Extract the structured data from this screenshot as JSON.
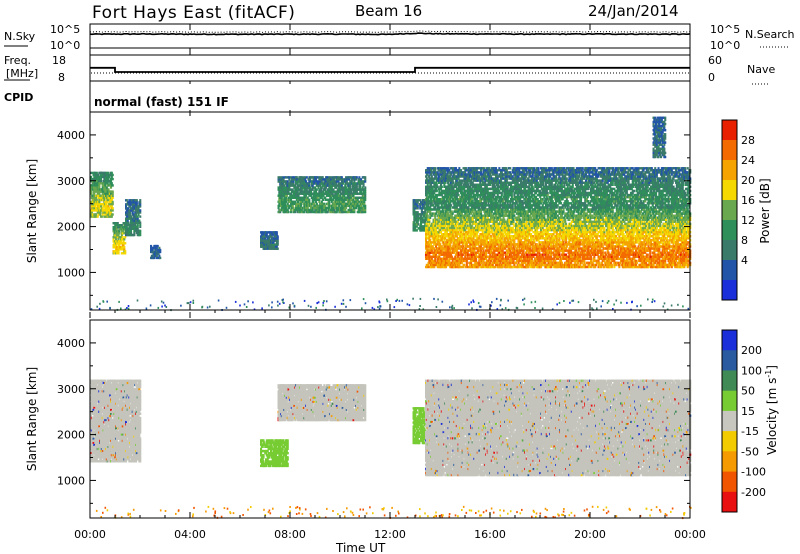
{
  "header": {
    "station": "Fort Hays East (fitACF)",
    "beam": "Beam 16",
    "date": "24/Jan/2014"
  },
  "panels": {
    "nsky": {
      "label": "N.Sky",
      "ticks": [
        "10^5",
        "10^0"
      ],
      "right_label": "N.Search",
      "right_ticks": [
        "10^5",
        "10^0"
      ]
    },
    "freq": {
      "label_line1": "Freq.",
      "label_line2": "[MHz]",
      "ticks": [
        "18",
        "8"
      ],
      "right_label": "Nave",
      "right_ticks": [
        "60",
        "0"
      ]
    },
    "cpid": {
      "label": "CPID",
      "value": "normal (fast) 151 IF"
    }
  },
  "xaxis": {
    "label": "Time UT",
    "ticks": [
      "00:00",
      "04:00",
      "08:00",
      "12:00",
      "16:00",
      "20:00",
      "00:00"
    ]
  },
  "colors": {
    "power": [
      "#1a2fd9",
      "#2255a8",
      "#3a7a6a",
      "#2f8f5a",
      "#6aa84f",
      "#f5d800",
      "#f4a300",
      "#f26a00",
      "#e82000"
    ],
    "velocity": [
      "#1a2fd9",
      "#2a5aa0",
      "#3f8a55",
      "#77cc33",
      "#c7c7c0",
      "#f2cc00",
      "#f59a00",
      "#f25500",
      "#e81010"
    ],
    "ground_scatter": "#c4c4bc"
  },
  "chart_data": [
    {
      "type": "line",
      "title": "N.Sky / N.Search",
      "x_range_hours": [
        0,
        24
      ],
      "series": [
        {
          "name": "N.Sky",
          "x": [
            0,
            2,
            4,
            6,
            8,
            10,
            12,
            13,
            14,
            16,
            18,
            20,
            22,
            24
          ],
          "values": [
            3000,
            3500,
            3000,
            2800,
            3000,
            3200,
            2500,
            6000,
            4000,
            3500,
            3000,
            3500,
            3200,
            3000
          ]
        }
      ]
    },
    {
      "type": "line",
      "title": "Freq. [MHz] / Nave",
      "x_range_hours": [
        0,
        24
      ],
      "ylim": [
        8,
        18
      ],
      "series": [
        {
          "name": "Freq.",
          "x": [
            0,
            1,
            1,
            13,
            13,
            24
          ],
          "values": [
            12.6,
            12.6,
            10.5,
            10.5,
            12.6,
            12.6
          ]
        }
      ]
    },
    {
      "type": "heatmap",
      "title": "Power [dB]",
      "ylabel": "Slant Range [km]",
      "xlabel": "Time UT",
      "ylim": [
        180,
        4500
      ],
      "x_range_hours": [
        0,
        24
      ],
      "colorbar": {
        "label": "Power [dB]",
        "ticks": [
          4,
          8,
          12,
          16,
          20,
          24,
          28
        ]
      },
      "yticks": [
        1000,
        2000,
        3000,
        4000
      ],
      "features": [
        {
          "t_start": 0.0,
          "t_end": 0.9,
          "range_start": 2200,
          "range_end": 3200,
          "peak_db": 20
        },
        {
          "t_start": 0.9,
          "t_end": 1.4,
          "range_start": 1400,
          "range_end": 2100,
          "peak_db": 22
        },
        {
          "t_start": 1.4,
          "t_end": 2.0,
          "range_start": 1800,
          "range_end": 2600,
          "peak_db": 10
        },
        {
          "t_start": 2.4,
          "t_end": 2.8,
          "range_start": 1300,
          "range_end": 1600,
          "peak_db": 6
        },
        {
          "t_start": 6.8,
          "t_end": 7.5,
          "range_start": 1500,
          "range_end": 1900,
          "peak_db": 8
        },
        {
          "t_start": 7.5,
          "t_end": 11.0,
          "range_start": 2300,
          "range_end": 3100,
          "peak_db": 14
        },
        {
          "t_start": 12.9,
          "t_end": 13.4,
          "range_start": 1900,
          "range_end": 2600,
          "peak_db": 12
        },
        {
          "t_start": 13.4,
          "t_end": 24.0,
          "range_start": 1100,
          "range_end": 2400,
          "peak_db": 28
        },
        {
          "t_start": 13.4,
          "t_end": 24.0,
          "range_start": 2400,
          "range_end": 3300,
          "peak_db": 12
        },
        {
          "t_start": 22.5,
          "t_end": 23.0,
          "range_start": 3500,
          "range_end": 4400,
          "peak_db": 8
        }
      ]
    },
    {
      "type": "heatmap",
      "title": "Velocity [m s^-1]",
      "ylabel": "Slant Range [km]",
      "xlabel": "Time UT",
      "ylim": [
        180,
        4500
      ],
      "x_range_hours": [
        0,
        24
      ],
      "colorbar": {
        "label": "Velocity [m s^-1]",
        "ticks": [
          200,
          100,
          50,
          15,
          -15,
          -50,
          -100,
          -200
        ]
      },
      "yticks": [
        1000,
        2000,
        3000,
        4000
      ],
      "features": [
        {
          "t_start": 0.0,
          "t_end": 2.0,
          "range_start": 1400,
          "range_end": 3200,
          "velocity": 0,
          "ground_scatter": true
        },
        {
          "t_start": 6.8,
          "t_end": 7.9,
          "range_start": 1300,
          "range_end": 1900,
          "velocity": 30
        },
        {
          "t_start": 7.5,
          "t_end": 11.0,
          "range_start": 2300,
          "range_end": 3100,
          "velocity": 0,
          "ground_scatter": true
        },
        {
          "t_start": 12.9,
          "t_end": 13.4,
          "range_start": 1800,
          "range_end": 2600,
          "velocity": 30
        },
        {
          "t_start": 13.4,
          "t_end": 24.0,
          "range_start": 1100,
          "range_end": 3200,
          "velocity": 0,
          "ground_scatter": true
        }
      ]
    }
  ]
}
